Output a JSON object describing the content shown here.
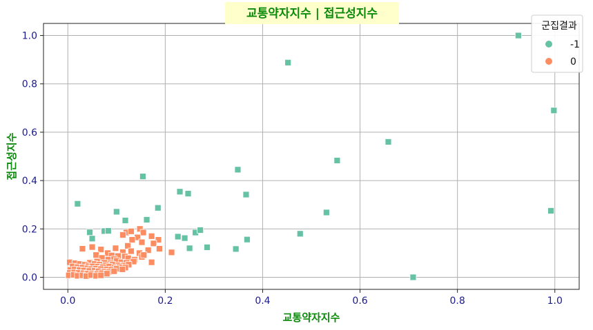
{
  "chart_data": {
    "type": "scatter",
    "title": "교통약자지수 | 접근성지수",
    "xlabel": "교통약자지수",
    "ylabel": "접근성지수",
    "xlim": [
      -0.05,
      1.05
    ],
    "ylim": [
      -0.05,
      1.05
    ],
    "xticks": [
      "0.0",
      "0.2",
      "0.4",
      "0.6",
      "0.8",
      "1.0"
    ],
    "yticks": [
      "0.0",
      "0.2",
      "0.4",
      "0.6",
      "0.8",
      "1.0"
    ],
    "grid": true,
    "marker": "square",
    "legend": {
      "title": "군집결과",
      "placement": "top-right"
    },
    "series": [
      {
        "name": "-1",
        "color": "#66c2a5",
        "points": [
          [
            0.925,
            1.0
          ],
          [
            0.998,
            0.69
          ],
          [
            0.452,
            0.888
          ],
          [
            0.658,
            0.56
          ],
          [
            0.553,
            0.483
          ],
          [
            0.349,
            0.445
          ],
          [
            0.154,
            0.417
          ],
          [
            0.366,
            0.342
          ],
          [
            0.23,
            0.354
          ],
          [
            0.247,
            0.346
          ],
          [
            0.992,
            0.275
          ],
          [
            0.02,
            0.304
          ],
          [
            0.1,
            0.271
          ],
          [
            0.185,
            0.287
          ],
          [
            0.531,
            0.268
          ],
          [
            0.118,
            0.235
          ],
          [
            0.162,
            0.238
          ],
          [
            0.045,
            0.186
          ],
          [
            0.075,
            0.191
          ],
          [
            0.083,
            0.192
          ],
          [
            0.226,
            0.168
          ],
          [
            0.24,
            0.162
          ],
          [
            0.262,
            0.185
          ],
          [
            0.272,
            0.195
          ],
          [
            0.477,
            0.18
          ],
          [
            0.05,
            0.16
          ],
          [
            0.368,
            0.156
          ],
          [
            0.25,
            0.12
          ],
          [
            0.286,
            0.124
          ],
          [
            0.345,
            0.117
          ],
          [
            0.709,
            0.0
          ]
        ]
      },
      {
        "name": "0",
        "color": "#fc8d62",
        "points": [
          [
            0.148,
            0.2
          ],
          [
            0.12,
            0.185
          ],
          [
            0.13,
            0.19
          ],
          [
            0.155,
            0.185
          ],
          [
            0.113,
            0.175
          ],
          [
            0.143,
            0.165
          ],
          [
            0.172,
            0.17
          ],
          [
            0.132,
            0.155
          ],
          [
            0.186,
            0.155
          ],
          [
            0.152,
            0.145
          ],
          [
            0.123,
            0.13
          ],
          [
            0.176,
            0.14
          ],
          [
            0.05,
            0.125
          ],
          [
            0.03,
            0.118
          ],
          [
            0.098,
            0.12
          ],
          [
            0.213,
            0.103
          ],
          [
            0.188,
            0.118
          ],
          [
            0.165,
            0.112
          ],
          [
            0.147,
            0.1
          ],
          [
            0.13,
            0.108
          ],
          [
            0.113,
            0.104
          ],
          [
            0.068,
            0.115
          ],
          [
            0.082,
            0.1
          ],
          [
            0.058,
            0.092
          ],
          [
            0.09,
            0.09
          ],
          [
            0.103,
            0.088
          ],
          [
            0.117,
            0.086
          ],
          [
            0.124,
            0.079
          ],
          [
            0.137,
            0.073
          ],
          [
            0.152,
            0.084
          ],
          [
            0.156,
            0.092
          ],
          [
            0.07,
            0.08
          ],
          [
            0.083,
            0.073
          ],
          [
            0.095,
            0.075
          ],
          [
            0.1,
            0.068
          ],
          [
            0.06,
            0.065
          ],
          [
            0.045,
            0.06
          ],
          [
            0.075,
            0.06
          ],
          [
            0.088,
            0.058
          ],
          [
            0.11,
            0.062
          ],
          [
            0.12,
            0.06
          ],
          [
            0.135,
            0.065
          ],
          [
            0.172,
            0.062
          ],
          [
            0.055,
            0.055
          ],
          [
            0.065,
            0.052
          ],
          [
            0.078,
            0.05
          ],
          [
            0.092,
            0.052
          ],
          [
            0.104,
            0.05
          ],
          [
            0.114,
            0.048
          ],
          [
            0.125,
            0.052
          ],
          [
            0.004,
            0.062
          ],
          [
            0.015,
            0.058
          ],
          [
            0.025,
            0.055
          ],
          [
            0.035,
            0.052
          ],
          [
            0.042,
            0.046
          ],
          [
            0.05,
            0.045
          ],
          [
            0.062,
            0.044
          ],
          [
            0.072,
            0.042
          ],
          [
            0.085,
            0.044
          ],
          [
            0.096,
            0.04
          ],
          [
            0.106,
            0.042
          ],
          [
            0.118,
            0.04
          ],
          [
            0.01,
            0.045
          ],
          [
            0.02,
            0.042
          ],
          [
            0.03,
            0.04
          ],
          [
            0.04,
            0.037
          ],
          [
            0.048,
            0.034
          ],
          [
            0.058,
            0.036
          ],
          [
            0.068,
            0.034
          ],
          [
            0.08,
            0.033
          ],
          [
            0.09,
            0.032
          ],
          [
            0.1,
            0.035
          ],
          [
            0.112,
            0.033
          ],
          [
            0.005,
            0.03
          ],
          [
            0.014,
            0.032
          ],
          [
            0.024,
            0.03
          ],
          [
            0.033,
            0.028
          ],
          [
            0.044,
            0.026
          ],
          [
            0.055,
            0.027
          ],
          [
            0.063,
            0.025
          ],
          [
            0.075,
            0.024
          ],
          [
            0.085,
            0.022
          ],
          [
            0.095,
            0.025
          ],
          [
            0.004,
            0.018
          ],
          [
            0.013,
            0.02
          ],
          [
            0.022,
            0.018
          ],
          [
            0.032,
            0.017
          ],
          [
            0.04,
            0.015
          ],
          [
            0.05,
            0.016
          ],
          [
            0.06,
            0.014
          ],
          [
            0.07,
            0.017
          ],
          [
            0.08,
            0.015
          ],
          [
            0.002,
            0.008
          ],
          [
            0.012,
            0.01
          ],
          [
            0.02,
            0.006
          ],
          [
            0.03,
            0.008
          ],
          [
            0.038,
            0.005
          ],
          [
            0.048,
            0.009
          ],
          [
            0.058,
            0.006
          ],
          [
            0.068,
            0.008
          ]
        ]
      }
    ]
  }
}
